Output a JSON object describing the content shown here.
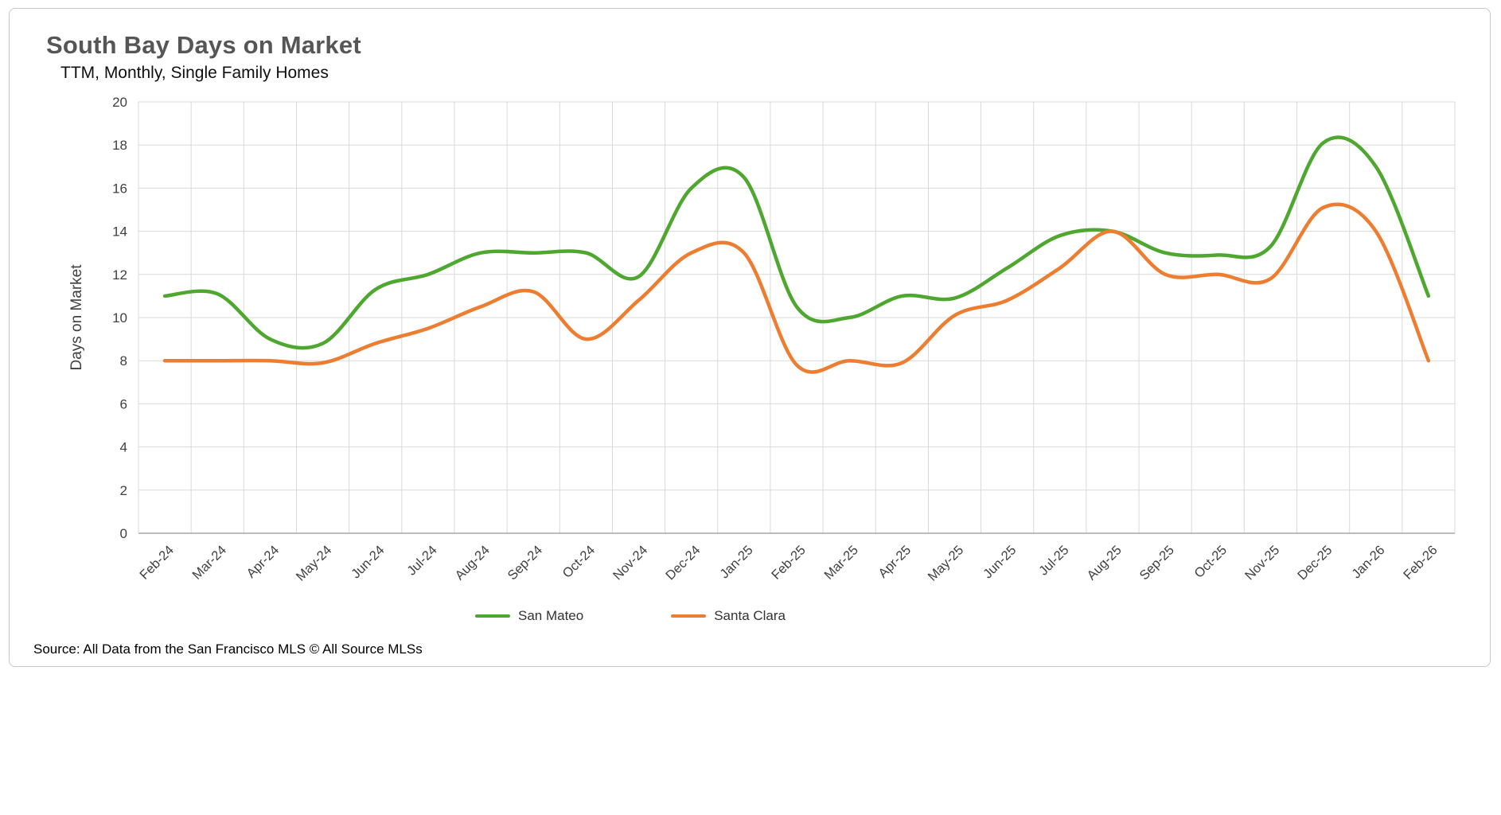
{
  "header": {
    "title": "South Bay Days on Market",
    "subtitle": "TTM, Monthly, Single Family Homes"
  },
  "chart_data": {
    "type": "line",
    "title": "South Bay Days on Market",
    "subtitle": "TTM, Monthly, Single Family Homes",
    "xlabel": "",
    "ylabel": "Days on Market",
    "ylim": [
      0,
      20
    ],
    "ytick_step": 2,
    "grid": true,
    "line_style": "smooth",
    "legend_position": "bottom",
    "categories": [
      "Feb-24",
      "Mar-24",
      "Apr-24",
      "May-24",
      "Jun-24",
      "Jul-24",
      "Aug-24",
      "Sep-24",
      "Oct-24",
      "Nov-24",
      "Dec-24",
      "Jan-25",
      "Feb-25",
      "Mar-25",
      "Apr-25",
      "May-25",
      "Jun-25",
      "Jul-25",
      "Aug-25",
      "Sep-25",
      "Oct-25",
      "Nov-25",
      "Dec-25",
      "Jan-26",
      "Feb-26"
    ],
    "series": [
      {
        "name": "San Mateo",
        "color": "#4EA72E",
        "values": [
          11.0,
          11.1,
          9.0,
          8.8,
          11.3,
          12.0,
          13.0,
          13.0,
          13.0,
          11.9,
          16.0,
          16.5,
          10.5,
          10.0,
          11.0,
          10.9,
          12.3,
          13.8,
          14.0,
          13.0,
          12.9,
          13.3,
          18.1,
          17.0,
          11.0
        ]
      },
      {
        "name": "Santa Clara",
        "color": "#ED7D31",
        "values": [
          8.0,
          8.0,
          8.0,
          7.9,
          8.8,
          9.5,
          10.5,
          11.2,
          9.0,
          10.8,
          13.0,
          13.0,
          7.8,
          8.0,
          7.9,
          10.1,
          10.8,
          12.3,
          14.0,
          12.0,
          12.0,
          11.8,
          15.1,
          14.0,
          8.0
        ]
      }
    ],
    "colors": {
      "gridline": "#d9d9d9",
      "axis": "#a6a6a6",
      "tick_label": "#404040"
    }
  },
  "footer": {
    "source": "Source: All Data from the San Francisco MLS © All Source MLSs"
  }
}
